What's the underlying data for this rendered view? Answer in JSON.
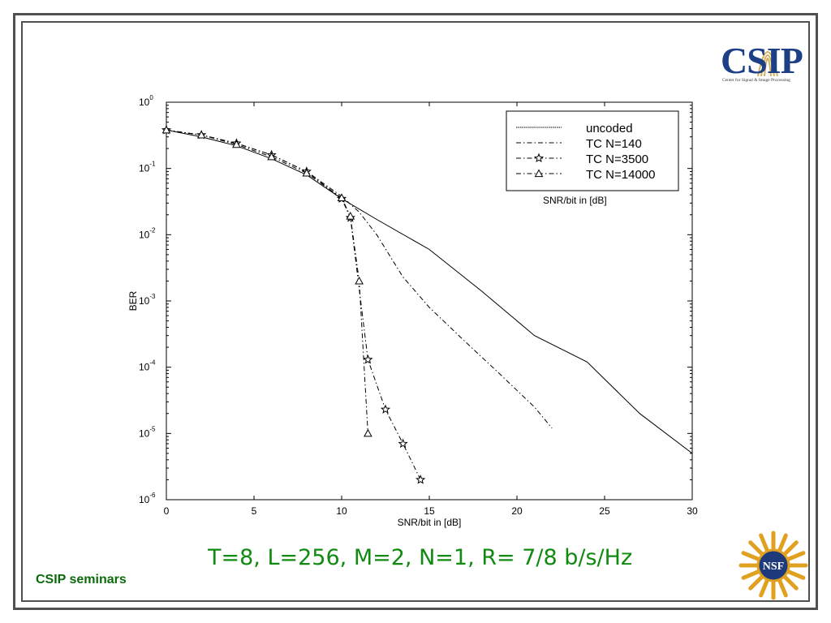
{
  "slide": {
    "caption": "T=8, L=256, M=2, N=1, R= 7/8 b/s/Hz",
    "footer": "CSIP seminars",
    "logo_text": "CSIP",
    "logo_subtitle": "Center for Signal & Image Processing",
    "nsf_text": "NSF",
    "colors": {
      "frame": "#505050",
      "caption": "#108a10",
      "footer": "#0c6a0c",
      "logo": "#1d3f86",
      "nsf_gold": "#e0a020"
    }
  },
  "chart_data": {
    "type": "line",
    "xlabel": "SNR/bit in [dB]",
    "ylabel": "BER",
    "xlim": [
      0,
      30
    ],
    "ylim": [
      1e-06,
      1
    ],
    "yscale": "log",
    "xticks": [
      0,
      5,
      10,
      15,
      20,
      25,
      30
    ],
    "yticks": [
      {
        "value": 1,
        "base": "10",
        "exp": "0"
      },
      {
        "value": 0.1,
        "base": "10",
        "exp": "-1"
      },
      {
        "value": 0.01,
        "base": "10",
        "exp": "-2"
      },
      {
        "value": 0.001,
        "base": "10",
        "exp": "-3"
      },
      {
        "value": 0.0001,
        "base": "10",
        "exp": "-4"
      },
      {
        "value": 1e-05,
        "base": "10",
        "exp": "-5"
      },
      {
        "value": 1e-06,
        "base": "10",
        "exp": "-6"
      }
    ],
    "grid": false,
    "legend_position": "top-right",
    "legend_note": "SNR/bit in [dB]",
    "series": [
      {
        "name": "uncoded",
        "style": "solid",
        "marker": "none",
        "points": [
          [
            0,
            0.38
          ],
          [
            2,
            0.3
          ],
          [
            4,
            0.22
          ],
          [
            6,
            0.14
          ],
          [
            8,
            0.08
          ],
          [
            10,
            0.035
          ],
          [
            12,
            0.017
          ],
          [
            15,
            0.006
          ],
          [
            18,
            0.0014
          ],
          [
            21,
            0.0003
          ],
          [
            24,
            0.00012
          ],
          [
            27,
            2e-05
          ],
          [
            30,
            5e-06
          ]
        ]
      },
      {
        "name": "TC N=140",
        "style": "dashdot",
        "marker": "none",
        "points": [
          [
            0,
            0.38
          ],
          [
            2,
            0.32
          ],
          [
            4,
            0.24
          ],
          [
            6,
            0.16
          ],
          [
            8,
            0.09
          ],
          [
            10,
            0.038
          ],
          [
            11,
            0.022
          ],
          [
            12,
            0.01
          ],
          [
            13.5,
            0.0023
          ],
          [
            15,
            0.0008
          ],
          [
            17,
            0.00025
          ],
          [
            19,
            8e-05
          ],
          [
            21,
            2.5e-05
          ],
          [
            22,
            1.2e-05
          ]
        ]
      },
      {
        "name": "TC N=3500",
        "style": "dashdot",
        "marker": "star",
        "points": [
          [
            0,
            0.38
          ],
          [
            2,
            0.32
          ],
          [
            4,
            0.24
          ],
          [
            6,
            0.16
          ],
          [
            8,
            0.09
          ],
          [
            10,
            0.035
          ],
          [
            10.5,
            0.018
          ],
          [
            11.5,
            0.00013
          ],
          [
            12.5,
            2.3e-05
          ],
          [
            13.5,
            7e-06
          ],
          [
            14.5,
            2e-06
          ]
        ]
      },
      {
        "name": "TC N=14000",
        "style": "dashdot",
        "marker": "triangle",
        "points": [
          [
            0,
            0.38
          ],
          [
            2,
            0.32
          ],
          [
            4,
            0.23
          ],
          [
            6,
            0.15
          ],
          [
            8,
            0.085
          ],
          [
            10,
            0.036
          ],
          [
            10.5,
            0.019
          ],
          [
            11,
            0.002
          ],
          [
            11.5,
            1e-05
          ]
        ]
      }
    ]
  }
}
